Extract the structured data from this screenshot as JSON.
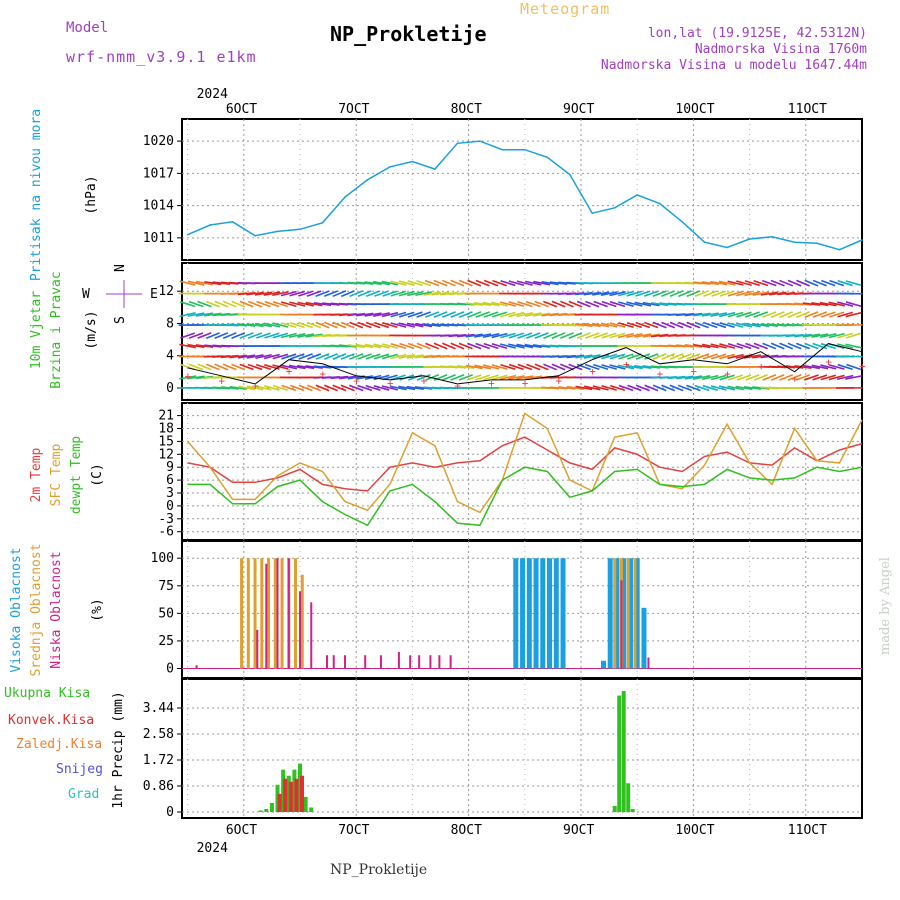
{
  "header": {
    "title": "NP_Prokletije",
    "subtitle": "Meteogram",
    "model_label": "Model",
    "model_value": "wrf-nmm_v3.9.1 e1km",
    "location_line1": "lon,lat (19.9125E, 42.5312N)",
    "location_line2": "Nadmorska Visina 1760m",
    "location_line3": "Nadmorska Visina u modelu 1647.44m"
  },
  "footer": {
    "station": "NP_Prokletije",
    "credit": "made by Angel"
  },
  "time_axis": {
    "year_label": "2024",
    "day_labels": [
      "6OCT",
      "7OCT",
      "8OCT",
      "9OCT",
      "10OCT",
      "11OCT"
    ]
  },
  "colors": {
    "pressure": "#1aa0e0",
    "wind_purple": "#8a20c8",
    "temp2m": "#e84040",
    "sfc": "#e0a030",
    "dewpt": "#30c020",
    "high_cloud": "#1aa0e0",
    "mid_cloud": "#e0a030",
    "low_cloud": "#d0208a",
    "precip": "#30c020",
    "conv": "#e03030"
  },
  "chart_data": [
    {
      "type": "line",
      "panel": "pressure",
      "ylabel": [
        "Pritisak na nivou mora",
        "(hPa)"
      ],
      "ylim": [
        1009.5,
        1021.5
      ],
      "yticks": [
        "1011",
        "1014",
        "1017",
        "1020"
      ],
      "x_days": [
        5.5,
        5.7,
        5.9,
        6.1,
        6.3,
        6.5,
        6.7,
        6.9,
        7.1,
        7.3,
        7.5,
        7.7,
        7.9,
        8.1,
        8.3,
        8.5,
        8.7,
        8.9,
        9.1,
        9.3,
        9.5,
        9.7,
        9.9,
        10.1,
        10.3,
        10.5,
        10.7,
        10.9,
        11.1,
        11.3,
        11.5
      ],
      "values": [
        1011.3,
        1012.2,
        1012.5,
        1011.2,
        1011.6,
        1011.8,
        1012.4,
        1014.8,
        1016.4,
        1017.6,
        1018.1,
        1017.4,
        1019.8,
        1020.0,
        1019.2,
        1019.2,
        1018.5,
        1016.9,
        1013.3,
        1013.8,
        1015.0,
        1014.2,
        1012.5,
        1010.6,
        1010.1,
        1010.9,
        1011.1,
        1010.6,
        1010.5,
        1009.9,
        1010.8
      ]
    },
    {
      "type": "line",
      "panel": "wind",
      "ylabel": [
        "10m Vjetar",
        "Brzina i Pravac",
        "(m/s)"
      ],
      "compass": [
        "N",
        "W",
        "E",
        "S"
      ],
      "ylim": [
        -1,
        15
      ],
      "yticks": [
        "0",
        "4",
        "8",
        "12"
      ],
      "x_days": [
        5.5,
        5.8,
        6.1,
        6.4,
        6.7,
        7.0,
        7.3,
        7.6,
        7.9,
        8.2,
        8.5,
        8.8,
        9.1,
        9.4,
        9.7,
        10.0,
        10.3,
        10.6,
        10.9,
        11.2,
        11.5
      ],
      "values": [
        2.5,
        1.5,
        0.5,
        3.5,
        3.0,
        1.5,
        1.0,
        1.5,
        0.5,
        1.0,
        1.0,
        1.5,
        3.5,
        5.0,
        3.0,
        3.5,
        3.0,
        4.5,
        2.0,
        5.5,
        4.5
      ]
    },
    {
      "type": "line",
      "panel": "temperature",
      "ylabel": [
        "2m Temp",
        "SFC Temp",
        "dewpt Temp",
        "(C)"
      ],
      "ylim": [
        -7,
        23
      ],
      "yticks": [
        "-6",
        "-3",
        "0",
        "3",
        "6",
        "9",
        "12",
        "15",
        "18",
        "21"
      ],
      "x_days": [
        5.5,
        5.7,
        5.9,
        6.1,
        6.3,
        6.5,
        6.7,
        6.9,
        7.1,
        7.3,
        7.5,
        7.7,
        7.9,
        8.1,
        8.3,
        8.5,
        8.7,
        8.9,
        9.1,
        9.3,
        9.5,
        9.7,
        9.9,
        10.1,
        10.3,
        10.5,
        10.7,
        10.9,
        11.1,
        11.3,
        11.5
      ],
      "series": [
        {
          "name": "2m Temp",
          "values": [
            10,
            9,
            5.5,
            5.5,
            6.5,
            8.5,
            5.0,
            4.0,
            3.5,
            9.0,
            10.0,
            9.0,
            10.0,
            10.5,
            14.0,
            16.0,
            13.0,
            10.0,
            8.5,
            13.5,
            12.0,
            9.0,
            8.0,
            11.5,
            12.5,
            10.0,
            9.5,
            13.5,
            10.5,
            13.0,
            14.5
          ]
        },
        {
          "name": "SFC Temp",
          "values": [
            15,
            9,
            1.5,
            1.5,
            7.0,
            10.0,
            8.0,
            1.0,
            -1.0,
            5.0,
            17.0,
            14.0,
            1.0,
            -1.5,
            6.0,
            21.5,
            18.0,
            6.0,
            3.5,
            16.0,
            17.0,
            5.0,
            4.0,
            9.5,
            19.0,
            10.0,
            5.0,
            18.0,
            10.5,
            10.0,
            20.0
          ]
        },
        {
          "name": "dewpt Temp",
          "values": [
            5,
            5,
            0.5,
            0.5,
            4.5,
            6.0,
            1.0,
            -2.0,
            -4.5,
            3.5,
            5.0,
            1.0,
            -4.0,
            -4.5,
            6.0,
            9.0,
            8.0,
            2.0,
            3.5,
            8.0,
            8.5,
            5.0,
            4.5,
            5.0,
            8.5,
            6.5,
            6.0,
            6.5,
            9.0,
            8.0,
            9.0
          ]
        }
      ]
    },
    {
      "type": "bar",
      "panel": "clouds",
      "ylabel": [
        "Visoka Oblacnost",
        "Srednja Oblacnost",
        "Niska Oblacnost",
        "(%)"
      ],
      "ylim": [
        -5,
        112
      ],
      "yticks": [
        "0",
        "25",
        "50",
        "75",
        "100"
      ],
      "series": [
        {
          "name": "Visoka Oblacnost",
          "x_days": [
            8.42,
            8.48,
            8.54,
            8.6,
            8.66,
            8.72,
            8.78,
            8.84,
            9.2,
            9.26,
            9.32,
            9.38,
            9.44,
            9.5,
            9.56
          ],
          "values": [
            100,
            100,
            100,
            100,
            100,
            100,
            100,
            100,
            7,
            100,
            100,
            100,
            100,
            100,
            55
          ]
        },
        {
          "name": "Srednja Oblacnost",
          "x_days": [
            5.98,
            6.04,
            6.1,
            6.16,
            6.22,
            6.28,
            6.34,
            6.4,
            6.46,
            6.52,
            9.3,
            9.36,
            9.42,
            9.48
          ],
          "values": [
            100,
            100,
            100,
            100,
            100,
            100,
            100,
            100,
            100,
            85,
            100,
            100,
            100,
            100
          ]
        },
        {
          "name": "Niska Oblacnost",
          "x_days": [
            5.58,
            6.12,
            6.2,
            6.3,
            6.4,
            6.5,
            6.6,
            6.74,
            6.8,
            6.9,
            7.08,
            7.22,
            7.38,
            7.48,
            7.56,
            7.66,
            7.74,
            7.84,
            9.36,
            9.6
          ],
          "values": [
            3,
            35,
            95,
            100,
            100,
            70,
            60,
            12,
            12,
            12,
            12,
            12,
            15,
            12,
            12,
            12,
            12,
            12,
            80,
            10
          ]
        }
      ]
    },
    {
      "type": "bar",
      "panel": "precip",
      "ylabel": [
        "1hr Precip (mm)"
      ],
      "legend": [
        "Ukupna Kisa",
        "Konvek.Kisa",
        "Zaledj.Kisa",
        "Snijeg",
        "Grad"
      ],
      "ylim": [
        0,
        4.2
      ],
      "yticks": [
        "0",
        "0.86",
        "1.72",
        "2.58",
        "3.44"
      ],
      "series": [
        {
          "name": "Ukupna Kisa",
          "x_days": [
            6.15,
            6.2,
            6.25,
            6.3,
            6.35,
            6.4,
            6.45,
            6.5,
            6.55,
            6.6,
            9.3,
            9.34,
            9.38,
            9.42,
            9.46
          ],
          "values": [
            0.05,
            0.1,
            0.3,
            0.9,
            1.4,
            1.2,
            1.4,
            1.6,
            0.5,
            0.15,
            0.2,
            3.85,
            4.0,
            0.95,
            0.1
          ]
        },
        {
          "name": "Konvek.Kisa",
          "x_days": [
            6.3,
            6.35,
            6.4,
            6.45,
            6.5
          ],
          "values": [
            0.6,
            1.1,
            1.0,
            1.1,
            1.2
          ]
        }
      ]
    }
  ]
}
